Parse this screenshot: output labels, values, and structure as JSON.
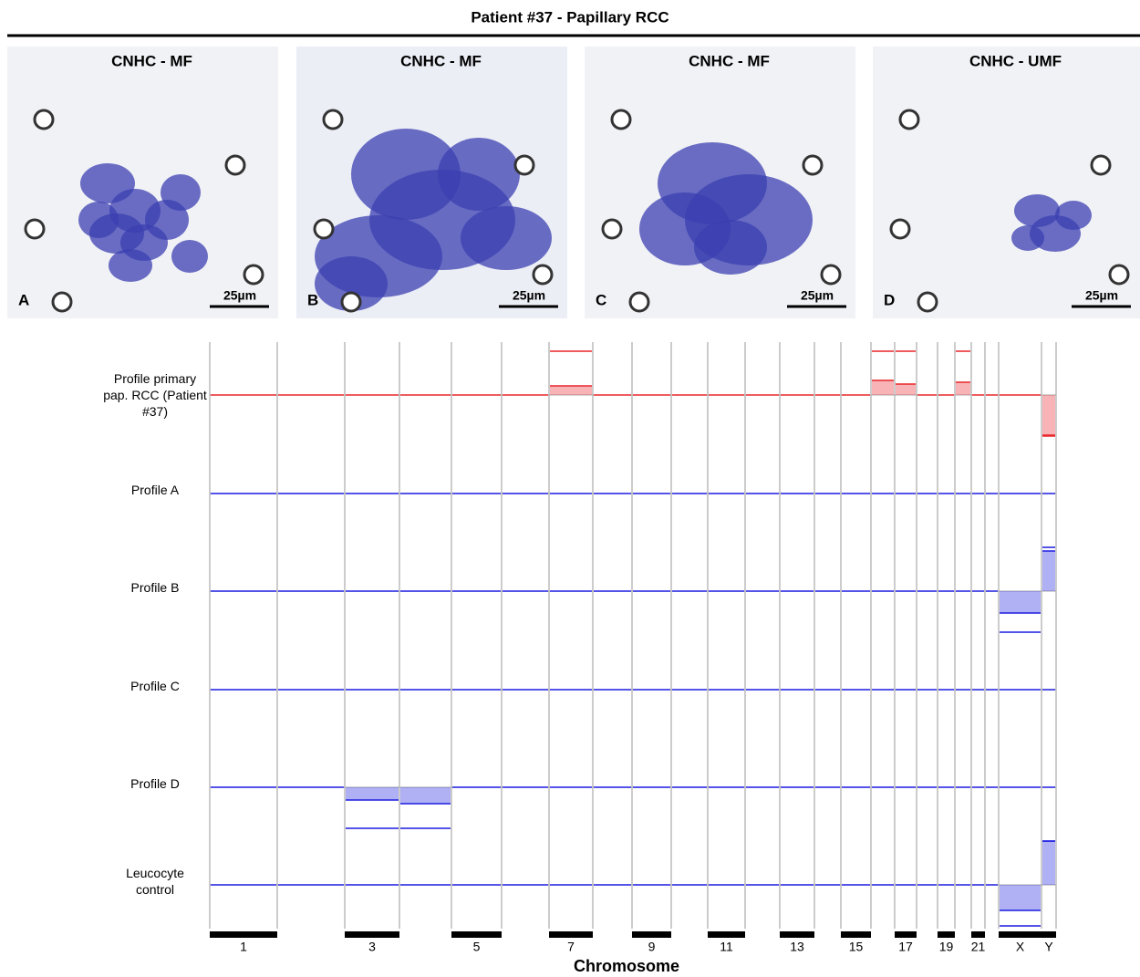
{
  "figure": {
    "title": "Patient #37 - Papillary RCC"
  },
  "panels": [
    {
      "title": "CNHC - MF",
      "letter": "A",
      "scale": "25µm"
    },
    {
      "title": "CNHC - MF",
      "letter": "B",
      "scale": "25µm"
    },
    {
      "title": "CNHC - MF",
      "letter": "C",
      "scale": "25µm"
    },
    {
      "title": "CNHC - UMF",
      "letter": "D",
      "scale": "25µm"
    }
  ],
  "chart_data": {
    "type": "cnv-profile",
    "xlabel": "Chromosome",
    "categories": [
      "1",
      null,
      "3",
      null,
      "5",
      null,
      "7",
      null,
      "9",
      null,
      "11",
      null,
      "13",
      null,
      "15",
      null,
      "17",
      null,
      "19",
      null,
      "21",
      null,
      "X",
      "Y"
    ],
    "series": [
      {
        "name": "Profile primary pap. RCC (Patient #37)",
        "color": "#e8262a",
        "values": [
          0,
          0,
          0,
          0,
          0,
          0,
          0.25,
          0,
          0,
          0,
          0,
          0,
          0,
          0,
          0,
          0.4,
          0.3,
          0,
          0,
          0.35,
          0,
          0,
          0,
          -1.1
        ]
      },
      {
        "name": "Profile A",
        "color": "#1c1ce0",
        "values": [
          0,
          0,
          0,
          0,
          0,
          0,
          0,
          0,
          0,
          0,
          0,
          0,
          0,
          0,
          0,
          0,
          0,
          0,
          0,
          0,
          0,
          0,
          0,
          0
        ]
      },
      {
        "name": "Profile B",
        "color": "#1c1ce0",
        "values": [
          0,
          0,
          0,
          0,
          0,
          0,
          0,
          0,
          0,
          0,
          0,
          0,
          0,
          0,
          0,
          0,
          0,
          0,
          0,
          0,
          0,
          0,
          -0.6,
          1.1
        ]
      },
      {
        "name": "Profile C",
        "color": "#1c1ce0",
        "values": [
          0,
          0,
          0,
          0,
          0,
          0,
          0,
          0,
          0,
          0,
          0,
          0,
          0,
          0,
          0,
          0,
          0,
          0,
          0,
          0,
          0,
          0,
          0,
          0
        ]
      },
      {
        "name": "Profile D",
        "color": "#1c1ce0",
        "values": [
          0,
          0,
          -0.35,
          -0.45,
          0,
          0,
          0,
          0,
          0,
          0,
          0,
          0,
          0,
          0,
          0,
          0,
          0,
          0,
          0,
          0,
          0,
          0,
          0,
          0
        ]
      },
      {
        "name": "Leucocyte control",
        "color": "#1c1ce0",
        "values": [
          0,
          0,
          0,
          0,
          0,
          0,
          0,
          0,
          0,
          0,
          0,
          0,
          0,
          0,
          0,
          0,
          0,
          0,
          0,
          0,
          0,
          0,
          -0.7,
          1.2
        ]
      }
    ]
  }
}
